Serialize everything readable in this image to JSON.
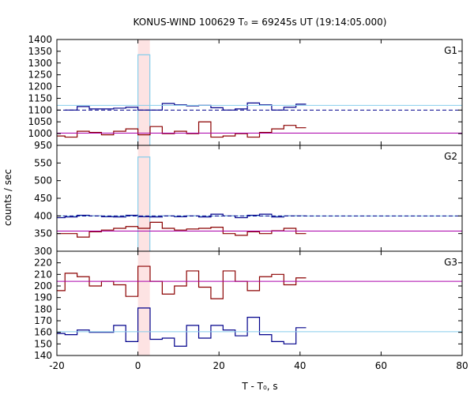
{
  "title": "KONUS-WIND 100629 T₀ = 69245s UT (19:14:05.000)",
  "xlabel": "T - T₀, s",
  "ylabel": "counts / sec",
  "colors": {
    "total": "#87ceeb",
    "low": "#00008b",
    "high": "#8b0000",
    "bg_low": "#aa00aa",
    "shade": "#fde3e3"
  },
  "chart_data": [
    {
      "type": "line",
      "panel": "G1",
      "xlim": [
        -20,
        80
      ],
      "ylim": [
        950,
        1400
      ],
      "yticks": [
        950,
        1000,
        1050,
        1100,
        1150,
        1200,
        1250,
        1300,
        1350,
        1400
      ],
      "xticks": [
        -20,
        0,
        20,
        40,
        60,
        80
      ],
      "shade_interval": [
        0,
        2.944
      ],
      "series": [
        {
          "name": "total",
          "style": "step",
          "color_key": "total",
          "edges": [
            0,
            2.944
          ],
          "values": [
            1335
          ]
        },
        {
          "name": "low",
          "style": "step",
          "color_key": "low",
          "edges": [
            -18,
            -15,
            -12,
            -6,
            -3,
            0,
            3,
            6,
            9,
            12,
            15,
            18,
            21,
            24,
            27,
            30,
            33,
            36,
            39,
            41.5
          ],
          "values": [
            1100,
            1115,
            1105,
            1108,
            1112,
            1100,
            1100,
            1128,
            1122,
            1118,
            1120,
            1110,
            1100,
            1105,
            1130,
            1122,
            1100,
            1112,
            1125
          ]
        },
        {
          "name": "high",
          "style": "step",
          "color_key": "high",
          "edges": [
            -20,
            -18,
            -15,
            -12,
            -9,
            -6,
            -3,
            0,
            3,
            6,
            9,
            12,
            15,
            18,
            21,
            24,
            27,
            30,
            33,
            36,
            39,
            41.5
          ],
          "values": [
            990,
            985,
            1010,
            1005,
            995,
            1010,
            1020,
            995,
            1030,
            1000,
            1010,
            1000,
            1050,
            985,
            990,
            1000,
            985,
            1005,
            1020,
            1035,
            1025
          ]
        },
        {
          "name": "total background",
          "style": "hline",
          "color_key": "total",
          "y": 1120
        },
        {
          "name": "low background",
          "style": "hdashed",
          "color_key": "low",
          "y": 1100
        },
        {
          "name": "high background",
          "style": "hline",
          "color_key": "bg_low",
          "y": 1002
        }
      ]
    },
    {
      "type": "line",
      "panel": "G2",
      "xlim": [
        -20,
        80
      ],
      "ylim": [
        300,
        600
      ],
      "yticks": [
        300,
        350,
        400,
        450,
        500,
        550
      ],
      "xticks": [
        -20,
        0,
        20,
        40,
        60,
        80
      ],
      "shade_interval": [
        0,
        2.944
      ],
      "series": [
        {
          "name": "total",
          "style": "step",
          "color_key": "total",
          "edges": [
            0,
            2.944
          ],
          "values": [
            567
          ]
        },
        {
          "name": "low",
          "style": "step",
          "color_key": "low",
          "edges": [
            -20,
            -18,
            -15,
            -12,
            -9,
            -6,
            -3,
            0,
            3,
            6,
            9,
            12,
            15,
            18,
            21,
            24,
            27,
            30,
            33,
            36,
            39,
            41.5
          ],
          "values": [
            395,
            397,
            402,
            400,
            398,
            397,
            402,
            398,
            397,
            400,
            398,
            400,
            397,
            405,
            400,
            395,
            402,
            405,
            397,
            400,
            400
          ]
        },
        {
          "name": "high",
          "style": "step",
          "color_key": "high",
          "edges": [
            -20,
            -18,
            -15,
            -12,
            -9,
            -6,
            -3,
            0,
            3,
            6,
            9,
            12,
            15,
            18,
            21,
            24,
            27,
            30,
            33,
            36,
            39,
            41.5
          ],
          "values": [
            350,
            350,
            340,
            355,
            360,
            365,
            370,
            365,
            382,
            365,
            360,
            363,
            365,
            368,
            350,
            345,
            355,
            350,
            358,
            365,
            350
          ]
        },
        {
          "name": "total background",
          "style": "hline",
          "color_key": "total",
          "y": 400
        },
        {
          "name": "low background",
          "style": "hdashed",
          "color_key": "low",
          "y": 400
        },
        {
          "name": "high background",
          "style": "hline",
          "color_key": "bg_low",
          "y": 357
        }
      ]
    },
    {
      "type": "line",
      "panel": "G3",
      "xlim": [
        -20,
        80
      ],
      "ylim": [
        140,
        230
      ],
      "yticks": [
        140,
        150,
        160,
        170,
        180,
        190,
        200,
        210,
        220
      ],
      "xticks": [
        -20,
        0,
        20,
        40,
        60,
        80
      ],
      "shade_interval": [
        0,
        2.944
      ],
      "series": [
        {
          "name": "high",
          "style": "step",
          "color_key": "high",
          "edges": [
            -20,
            -18,
            -15,
            -12,
            -9,
            -6,
            -3,
            0,
            3,
            6,
            9,
            12,
            15,
            18,
            21,
            24,
            27,
            30,
            33,
            36,
            39,
            41.5
          ],
          "values": [
            196,
            211,
            208,
            200,
            204,
            201,
            191,
            217,
            204,
            193,
            200,
            213,
            199,
            189,
            213,
            204,
            196,
            208,
            210,
            201,
            207
          ]
        },
        {
          "name": "low",
          "style": "step",
          "color_key": "low",
          "edges": [
            -20,
            -18,
            -15,
            -12,
            -9,
            -6,
            -3,
            0,
            3,
            6,
            9,
            12,
            15,
            18,
            21,
            24,
            27,
            30,
            33,
            36,
            39,
            41.5
          ],
          "values": [
            159,
            158,
            162,
            160,
            160,
            166,
            152,
            181,
            154,
            155,
            148,
            166,
            155,
            166,
            162,
            157,
            173,
            158,
            152,
            150,
            164
          ]
        },
        {
          "name": "high background",
          "style": "hline",
          "color_key": "bg_low",
          "y": 204
        },
        {
          "name": "low background",
          "style": "hline",
          "color_key": "total",
          "y": 160.5
        }
      ]
    }
  ]
}
